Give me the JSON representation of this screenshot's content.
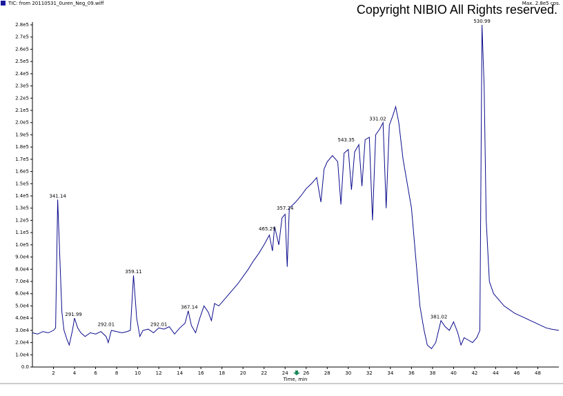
{
  "chart_data": {
    "type": "line",
    "title": "TIC: from 20110531_0uren_Neg_09.wiff",
    "subtitle": "Max. 2.8e5 cps.",
    "copyright": "Copyright NIBIO All Rights reserved.",
    "x_label": "Time, min",
    "xlim": [
      0,
      50
    ],
    "ylim": [
      0,
      280000
    ],
    "xticks": [
      2,
      4,
      6,
      8,
      10,
      12,
      14,
      16,
      18,
      20,
      22,
      24,
      26,
      28,
      30,
      32,
      34,
      36,
      38,
      40,
      42,
      44,
      46,
      48
    ],
    "yticks": [
      {
        "value": 0,
        "label": "0.0"
      },
      {
        "value": 10000,
        "label": "1.0e4"
      },
      {
        "value": 20000,
        "label": "2.0e4"
      },
      {
        "value": 30000,
        "label": "3.0e4"
      },
      {
        "value": 40000,
        "label": "4.0e4"
      },
      {
        "value": 50000,
        "label": "5.0e4"
      },
      {
        "value": 60000,
        "label": "6.0e4"
      },
      {
        "value": 70000,
        "label": "7.0e4"
      },
      {
        "value": 80000,
        "label": "8.0e4"
      },
      {
        "value": 90000,
        "label": "9.0e4"
      },
      {
        "value": 100000,
        "label": "1.0e5"
      },
      {
        "value": 110000,
        "label": "1.1e5"
      },
      {
        "value": 120000,
        "label": "1.2e5"
      },
      {
        "value": 130000,
        "label": "1.3e5"
      },
      {
        "value": 140000,
        "label": "1.4e5"
      },
      {
        "value": 150000,
        "label": "1.5e5"
      },
      {
        "value": 160000,
        "label": "1.6e5"
      },
      {
        "value": 170000,
        "label": "1.7e5"
      },
      {
        "value": 180000,
        "label": "1.8e5"
      },
      {
        "value": 190000,
        "label": "1.9e5"
      },
      {
        "value": 200000,
        "label": "2.0e5"
      },
      {
        "value": 210000,
        "label": "2.1e5"
      },
      {
        "value": 220000,
        "label": "2.2e5"
      },
      {
        "value": 230000,
        "label": "2.3e5"
      },
      {
        "value": 240000,
        "label": "2.4e5"
      },
      {
        "value": 250000,
        "label": "2.5e5"
      },
      {
        "value": 260000,
        "label": "2.6e5"
      },
      {
        "value": 270000,
        "label": "2.7e5"
      },
      {
        "value": 280000,
        "label": "2.8e5"
      }
    ],
    "color": "#0a0a8c",
    "x": [
      0,
      0.5,
      1,
      1.5,
      2,
      2.2,
      2.4,
      2.6,
      2.8,
      3.0,
      3.3,
      3.5,
      3.8,
      4.0,
      4.3,
      4.6,
      5,
      5.5,
      6,
      6.5,
      7,
      7.2,
      7.5,
      8,
      8.5,
      9,
      9.3,
      9.6,
      9.9,
      10.2,
      10.5,
      11,
      11.5,
      12,
      12.5,
      13,
      13.5,
      14,
      14.5,
      14.8,
      15.1,
      15.5,
      15.9,
      16.3,
      16.7,
      17,
      17.3,
      17.7,
      18.5,
      19,
      19.5,
      20,
      20.5,
      21,
      21.5,
      22,
      22.5,
      22.8,
      23,
      23.4,
      23.7,
      24,
      24.2,
      24.4,
      25,
      25.5,
      26,
      26.5,
      27,
      27.4,
      27.7,
      28,
      28.5,
      29,
      29.3,
      29.6,
      30,
      30.3,
      30.6,
      31,
      31.3,
      31.6,
      32,
      32.3,
      32.6,
      33,
      33.3,
      33.6,
      33.9,
      34.2,
      34.5,
      34.8,
      35.2,
      35.6,
      36,
      36.4,
      36.8,
      37.2,
      37.5,
      37.9,
      38.3,
      38.8,
      39.2,
      39.6,
      40,
      40.4,
      40.7,
      41,
      41.4,
      41.8,
      42.2,
      42.5,
      42.7,
      42.9,
      43.1,
      43.4,
      43.8,
      44.3,
      44.8,
      45.3,
      45.8,
      46.3,
      46.8,
      47.3,
      47.8,
      48.3,
      48.8,
      49.3,
      50
    ],
    "values": [
      28000,
      27000,
      29000,
      28000,
      30000,
      32000,
      137000,
      90000,
      45000,
      30000,
      22000,
      18000,
      30000,
      40000,
      32000,
      28000,
      25000,
      28000,
      27000,
      29000,
      25000,
      20000,
      30000,
      29000,
      28000,
      29000,
      30000,
      75000,
      40000,
      25000,
      30000,
      31000,
      28000,
      32000,
      31000,
      33000,
      27000,
      32000,
      36000,
      46000,
      34000,
      28000,
      40000,
      50000,
      45000,
      38000,
      52000,
      50000,
      58000,
      63000,
      68000,
      74000,
      80000,
      87000,
      93000,
      100000,
      108000,
      95000,
      115000,
      100000,
      122000,
      125000,
      82000,
      130000,
      135000,
      140000,
      146000,
      150000,
      155000,
      135000,
      162000,
      168000,
      173000,
      168000,
      133000,
      175000,
      178000,
      145000,
      176000,
      182000,
      148000,
      186000,
      188000,
      120000,
      190000,
      195000,
      200000,
      130000,
      198000,
      205000,
      213000,
      200000,
      170000,
      150000,
      130000,
      90000,
      50000,
      30000,
      18000,
      15000,
      20000,
      38000,
      33000,
      30000,
      37000,
      28000,
      18000,
      24000,
      22000,
      20000,
      24000,
      30000,
      280000,
      230000,
      120000,
      70000,
      60000,
      55000,
      50000,
      47000,
      44000,
      42000,
      40000,
      38000,
      36000,
      34000,
      32000,
      31000,
      30000
    ],
    "annotations": [
      {
        "text": "341.14",
        "x": 2.4,
        "y": 137000
      },
      {
        "text": "291.99",
        "x": 3.9,
        "y": 40000
      },
      {
        "text": "292.01",
        "x": 7.0,
        "y": 32000
      },
      {
        "text": "359.11",
        "x": 9.6,
        "y": 75000
      },
      {
        "text": "292.01",
        "x": 12.0,
        "y": 32000
      },
      {
        "text": "367.14",
        "x": 14.9,
        "y": 46000
      },
      {
        "text": "465.29",
        "x": 22.3,
        "y": 110000
      },
      {
        "text": "357.24",
        "x": 24.0,
        "y": 127000
      },
      {
        "text": "543.35",
        "x": 29.8,
        "y": 183000
      },
      {
        "text": "331.02",
        "x": 32.8,
        "y": 200000
      },
      {
        "text": "381.02",
        "x": 38.6,
        "y": 38000
      },
      {
        "text": "530.99",
        "x": 42.7,
        "y": 280000
      }
    ]
  }
}
